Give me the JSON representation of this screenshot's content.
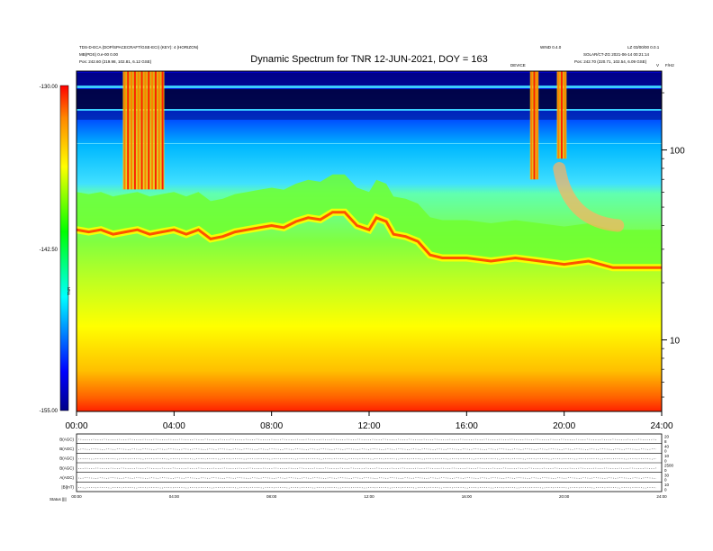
{
  "header": {
    "left_line1": "TDS-D-ECA (DOP/SPACECRAFT/GSE-ECI) (KEY): 4 (HORIZON)",
    "left_line2": "MB(PDS) 0.e-00 0.00",
    "left_line3": "Pos: 242.60 (219.98, 102.81, 6.12 GSE)",
    "right_line1a": "WIND 0.4.0",
    "right_line1b": "LZ 03/00/00 0.0.1",
    "right_line2": "SOLAR/CT-ZG 2021-06-14 00:21:14",
    "right_line3": "Pos: 242.70 (220.71, 102.54, 6.09 GSE)",
    "marker_a": "DEVICE",
    "marker_b": "V",
    "marker_c": "F/H2"
  },
  "chart_data": {
    "type": "heatmap",
    "title": "Dynamic Spectrum for TNR 12-JUN-2021, DOY = 163",
    "x_ticks": [
      "00:00",
      "04:00",
      "08:00",
      "12:00",
      "16:00",
      "20:00",
      "24:00"
    ],
    "xlim_hours": [
      0,
      24
    ],
    "y_scale": "log",
    "ylim": [
      4.2,
      260
    ],
    "y_ticks": [
      {
        "value": 100,
        "label": "100"
      },
      {
        "value": 10,
        "label": "10"
      }
    ],
    "colorbar": {
      "labels": [
        "-130.00",
        "-142.50",
        "-155.00"
      ],
      "range": [
        -155.0,
        -130.0
      ],
      "units": "TNR",
      "colors": [
        "#ff0000",
        "#ff8800",
        "#ffff00",
        "#00ff00",
        "#00ffff",
        "#0000ff",
        "#000088"
      ]
    },
    "plasma_line_freq": [
      [
        0.0,
        38
      ],
      [
        0.5,
        37
      ],
      [
        1.0,
        38
      ],
      [
        1.5,
        36
      ],
      [
        2.0,
        37
      ],
      [
        2.5,
        38
      ],
      [
        3.0,
        36
      ],
      [
        3.5,
        37
      ],
      [
        4.0,
        38
      ],
      [
        4.5,
        36
      ],
      [
        5.0,
        38
      ],
      [
        5.5,
        34
      ],
      [
        6.0,
        35
      ],
      [
        6.5,
        37
      ],
      [
        7.0,
        38
      ],
      [
        7.5,
        39
      ],
      [
        8.0,
        40
      ],
      [
        8.5,
        39
      ],
      [
        9.0,
        42
      ],
      [
        9.5,
        44
      ],
      [
        10.0,
        43
      ],
      [
        10.5,
        47
      ],
      [
        11.0,
        47
      ],
      [
        11.5,
        40
      ],
      [
        12.0,
        38
      ],
      [
        12.3,
        44
      ],
      [
        12.7,
        42
      ],
      [
        13.0,
        36
      ],
      [
        13.5,
        35
      ],
      [
        14.0,
        33
      ],
      [
        14.5,
        28
      ],
      [
        15.0,
        27
      ],
      [
        16.0,
        27
      ],
      [
        17.0,
        26
      ],
      [
        18.0,
        27
      ],
      [
        19.0,
        26
      ],
      [
        20.0,
        25
      ],
      [
        21.0,
        26
      ],
      [
        22.0,
        24
      ],
      [
        23.0,
        24
      ],
      [
        24.0,
        24
      ]
    ],
    "bursts": [
      {
        "start": 1.9,
        "end": 3.6,
        "top_freq": 260,
        "bottom_freq": 62,
        "intensity": "high"
      },
      {
        "start": 18.6,
        "end": 18.95,
        "top_freq": 260,
        "bottom_freq": 70,
        "intensity": "high"
      },
      {
        "start": 19.7,
        "end": 20.1,
        "top_freq": 260,
        "bottom_freq": 90,
        "intensity": "high"
      }
    ],
    "drifting_burst": {
      "start": 19.8,
      "end": 22.2,
      "start_freq": 80,
      "end_freq": 40
    }
  },
  "bottom_panels": {
    "labels": [
      "B(AGC)",
      "B(AGC)",
      "B(AGC)",
      "B(AGC)",
      "A(AGC)",
      "|B|(nT)"
    ],
    "right_labels": [
      "20",
      "8",
      "40",
      "0",
      "10",
      "0",
      "2500",
      "0",
      "30",
      "0",
      "10",
      "0"
    ],
    "x_ticks": [
      "00:00",
      "04:00",
      "08:00",
      "12:00",
      "16:00",
      "20:00",
      "24:00"
    ],
    "footer_label": "Status  ||||"
  }
}
